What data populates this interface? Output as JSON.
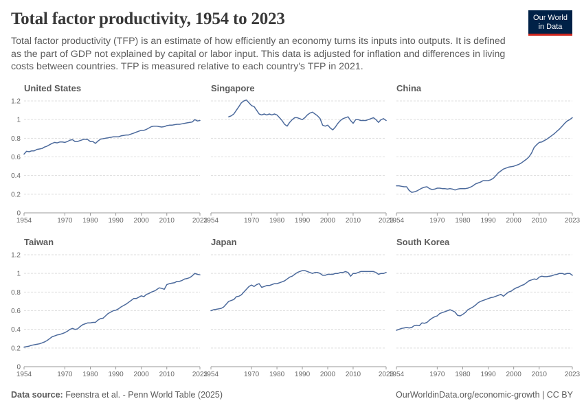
{
  "header": {
    "title": "Total factor productivity, 1954 to 2023",
    "subtitle": "Total factor productivity (TFP) is an estimate of how efficiently an economy turns its inputs into outputs. It is defined as the part of GDP not explained by capital or labor input. This data is adjusted for inflation and differences in living costs between countries. TFP is measured relative to each country's TFP in 2021.",
    "logo_line1": "Our World",
    "logo_line2": "in Data"
  },
  "footer": {
    "source_label": "Data source:",
    "source_text": "Feenstra et al. - Penn World Table (2025)",
    "right_text": "OurWorldinData.org/economic-growth | CC BY"
  },
  "colors": {
    "line": "#4c6a9c",
    "grid": "#dddddd",
    "axis": "#999999",
    "logo_bg": "#002147",
    "logo_accent": "#ce261e"
  },
  "chart_data": [
    {
      "type": "line",
      "title": "United States",
      "xticks": [
        1954,
        1970,
        1980,
        1990,
        2000,
        2010,
        2023
      ],
      "yticks": [
        0,
        0.2,
        0.4,
        0.6,
        0.8,
        1,
        1.2
      ],
      "ytick_labels": [
        "0",
        "0.2",
        "0.4",
        "0.6",
        "0.8",
        "1",
        "1.2"
      ],
      "xlim": [
        1954,
        2023
      ],
      "ylim": [
        0,
        1.25
      ],
      "grid": true,
      "x": [
        1954,
        1955,
        1956,
        1957,
        1958,
        1959,
        1960,
        1961,
        1962,
        1963,
        1964,
        1965,
        1966,
        1967,
        1968,
        1969,
        1970,
        1971,
        1972,
        1973,
        1974,
        1975,
        1976,
        1977,
        1978,
        1979,
        1980,
        1981,
        1982,
        1983,
        1984,
        1985,
        1986,
        1987,
        1988,
        1989,
        1990,
        1991,
        1992,
        1993,
        1994,
        1995,
        1996,
        1997,
        1998,
        1999,
        2000,
        2001,
        2002,
        2003,
        2004,
        2005,
        2006,
        2007,
        2008,
        2009,
        2010,
        2011,
        2012,
        2013,
        2014,
        2015,
        2016,
        2017,
        2018,
        2019,
        2020,
        2021,
        2022,
        2023
      ],
      "y": [
        0.63,
        0.66,
        0.655,
        0.665,
        0.665,
        0.68,
        0.685,
        0.69,
        0.705,
        0.715,
        0.73,
        0.745,
        0.755,
        0.75,
        0.76,
        0.76,
        0.755,
        0.765,
        0.78,
        0.785,
        0.765,
        0.765,
        0.775,
        0.785,
        0.79,
        0.785,
        0.765,
        0.765,
        0.745,
        0.77,
        0.79,
        0.795,
        0.8,
        0.805,
        0.81,
        0.815,
        0.815,
        0.815,
        0.825,
        0.83,
        0.835,
        0.835,
        0.845,
        0.855,
        0.865,
        0.875,
        0.885,
        0.885,
        0.895,
        0.91,
        0.925,
        0.93,
        0.93,
        0.925,
        0.92,
        0.925,
        0.935,
        0.94,
        0.94,
        0.945,
        0.95,
        0.95,
        0.955,
        0.96,
        0.965,
        0.97,
        0.975,
        1.0,
        0.985,
        0.99
      ]
    },
    {
      "type": "line",
      "title": "Singapore",
      "xticks": [
        1954,
        1970,
        1980,
        1990,
        2000,
        2010,
        2023
      ],
      "yticks": [
        0,
        0.2,
        0.4,
        0.6,
        0.8,
        1,
        1.2
      ],
      "ytick_labels": [
        "",
        "",
        "",
        "",
        "",
        "",
        ""
      ],
      "xlim": [
        1954,
        2023
      ],
      "ylim": [
        0,
        1.25
      ],
      "grid": true,
      "x": [
        1961,
        1962,
        1963,
        1964,
        1965,
        1966,
        1967,
        1968,
        1969,
        1970,
        1971,
        1972,
        1973,
        1974,
        1975,
        1976,
        1977,
        1978,
        1979,
        1980,
        1981,
        1982,
        1983,
        1984,
        1985,
        1986,
        1987,
        1988,
        1989,
        1990,
        1991,
        1992,
        1993,
        1994,
        1995,
        1996,
        1997,
        1998,
        1999,
        2000,
        2001,
        2002,
        2003,
        2004,
        2005,
        2006,
        2007,
        2008,
        2009,
        2010,
        2011,
        2012,
        2013,
        2014,
        2015,
        2016,
        2017,
        2018,
        2019,
        2020,
        2021,
        2022,
        2023
      ],
      "y": [
        1.03,
        1.04,
        1.06,
        1.1,
        1.14,
        1.18,
        1.2,
        1.21,
        1.18,
        1.15,
        1.14,
        1.1,
        1.06,
        1.05,
        1.06,
        1.05,
        1.06,
        1.05,
        1.06,
        1.05,
        1.02,
        0.99,
        0.95,
        0.93,
        0.97,
        1.0,
        1.02,
        1.02,
        1.01,
        1.0,
        1.02,
        1.05,
        1.07,
        1.08,
        1.06,
        1.04,
        1.01,
        0.94,
        0.93,
        0.94,
        0.91,
        0.89,
        0.92,
        0.96,
        0.99,
        1.01,
        1.02,
        1.03,
        0.99,
        0.96,
        1.0,
        1.0,
        0.99,
        0.99,
        0.99,
        1.0,
        1.01,
        1.02,
        1.0,
        0.97,
        1.0,
        1.01,
        0.99
      ]
    },
    {
      "type": "line",
      "title": "China",
      "xticks": [
        1954,
        1970,
        1980,
        1990,
        2000,
        2010,
        2023
      ],
      "yticks": [
        0,
        0.2,
        0.4,
        0.6,
        0.8,
        1,
        1.2
      ],
      "ytick_labels": [
        "",
        "",
        "",
        "",
        "",
        "",
        ""
      ],
      "xlim": [
        1954,
        2023
      ],
      "ylim": [
        0,
        1.25
      ],
      "grid": true,
      "x": [
        1954,
        1955,
        1956,
        1957,
        1958,
        1959,
        1960,
        1961,
        1962,
        1963,
        1964,
        1965,
        1966,
        1967,
        1968,
        1969,
        1970,
        1971,
        1972,
        1973,
        1974,
        1975,
        1976,
        1977,
        1978,
        1979,
        1980,
        1981,
        1982,
        1983,
        1984,
        1985,
        1986,
        1987,
        1988,
        1989,
        1990,
        1991,
        1992,
        1993,
        1994,
        1995,
        1996,
        1997,
        1998,
        1999,
        2000,
        2001,
        2002,
        2003,
        2004,
        2005,
        2006,
        2007,
        2008,
        2009,
        2010,
        2011,
        2012,
        2013,
        2014,
        2015,
        2016,
        2017,
        2018,
        2019,
        2020,
        2021,
        2022,
        2023
      ],
      "y": [
        0.29,
        0.29,
        0.285,
        0.28,
        0.28,
        0.24,
        0.22,
        0.225,
        0.235,
        0.25,
        0.265,
        0.275,
        0.28,
        0.26,
        0.25,
        0.255,
        0.265,
        0.265,
        0.26,
        0.26,
        0.255,
        0.26,
        0.255,
        0.245,
        0.255,
        0.26,
        0.26,
        0.26,
        0.265,
        0.275,
        0.29,
        0.31,
        0.32,
        0.33,
        0.345,
        0.345,
        0.345,
        0.355,
        0.37,
        0.4,
        0.43,
        0.45,
        0.47,
        0.48,
        0.49,
        0.495,
        0.5,
        0.51,
        0.52,
        0.535,
        0.555,
        0.575,
        0.6,
        0.64,
        0.7,
        0.73,
        0.755,
        0.76,
        0.775,
        0.79,
        0.81,
        0.83,
        0.85,
        0.875,
        0.9,
        0.93,
        0.96,
        0.985,
        1.0,
        1.02
      ]
    },
    {
      "type": "line",
      "title": "Taiwan",
      "xticks": [
        1954,
        1970,
        1980,
        1990,
        2000,
        2010,
        2023
      ],
      "yticks": [
        0,
        0.2,
        0.4,
        0.6,
        0.8,
        1,
        1.2
      ],
      "ytick_labels": [
        "0",
        "0.2",
        "0.4",
        "0.6",
        "0.8",
        "1",
        "1.2"
      ],
      "xlim": [
        1954,
        2023
      ],
      "ylim": [
        0,
        1.25
      ],
      "grid": true,
      "x": [
        1954,
        1955,
        1956,
        1957,
        1958,
        1959,
        1960,
        1961,
        1962,
        1963,
        1964,
        1965,
        1966,
        1967,
        1968,
        1969,
        1970,
        1971,
        1972,
        1973,
        1974,
        1975,
        1976,
        1977,
        1978,
        1979,
        1980,
        1981,
        1982,
        1983,
        1984,
        1985,
        1986,
        1987,
        1988,
        1989,
        1990,
        1991,
        1992,
        1993,
        1994,
        1995,
        1996,
        1997,
        1998,
        1999,
        2000,
        2001,
        2002,
        2003,
        2004,
        2005,
        2006,
        2007,
        2008,
        2009,
        2010,
        2011,
        2012,
        2013,
        2014,
        2015,
        2016,
        2017,
        2018,
        2019,
        2020,
        2021,
        2022,
        2023
      ],
      "y": [
        0.21,
        0.215,
        0.22,
        0.23,
        0.235,
        0.24,
        0.245,
        0.255,
        0.265,
        0.28,
        0.3,
        0.32,
        0.33,
        0.34,
        0.345,
        0.355,
        0.365,
        0.38,
        0.4,
        0.41,
        0.4,
        0.405,
        0.43,
        0.45,
        0.46,
        0.47,
        0.47,
        0.475,
        0.475,
        0.5,
        0.515,
        0.52,
        0.545,
        0.57,
        0.585,
        0.6,
        0.605,
        0.62,
        0.64,
        0.655,
        0.67,
        0.69,
        0.71,
        0.73,
        0.73,
        0.745,
        0.76,
        0.75,
        0.775,
        0.785,
        0.8,
        0.81,
        0.825,
        0.845,
        0.84,
        0.83,
        0.88,
        0.89,
        0.895,
        0.9,
        0.915,
        0.915,
        0.925,
        0.94,
        0.945,
        0.955,
        0.975,
        1.0,
        0.99,
        0.985
      ]
    },
    {
      "type": "line",
      "title": "Japan",
      "xticks": [
        1954,
        1970,
        1980,
        1990,
        2000,
        2010,
        2023
      ],
      "yticks": [
        0,
        0.2,
        0.4,
        0.6,
        0.8,
        1,
        1.2
      ],
      "ytick_labels": [
        "",
        "",
        "",
        "",
        "",
        "",
        ""
      ],
      "xlim": [
        1954,
        2023
      ],
      "ylim": [
        0,
        1.25
      ],
      "grid": true,
      "x": [
        1954,
        1955,
        1956,
        1957,
        1958,
        1959,
        1960,
        1961,
        1962,
        1963,
        1964,
        1965,
        1966,
        1967,
        1968,
        1969,
        1970,
        1971,
        1972,
        1973,
        1974,
        1975,
        1976,
        1977,
        1978,
        1979,
        1980,
        1981,
        1982,
        1983,
        1984,
        1985,
        1986,
        1987,
        1988,
        1989,
        1990,
        1991,
        1992,
        1993,
        1994,
        1995,
        1996,
        1997,
        1998,
        1999,
        2000,
        2001,
        2002,
        2003,
        2004,
        2005,
        2006,
        2007,
        2008,
        2009,
        2010,
        2011,
        2012,
        2013,
        2014,
        2015,
        2016,
        2017,
        2018,
        2019,
        2020,
        2021,
        2022,
        2023
      ],
      "y": [
        0.6,
        0.61,
        0.615,
        0.62,
        0.625,
        0.64,
        0.67,
        0.7,
        0.71,
        0.72,
        0.75,
        0.755,
        0.77,
        0.8,
        0.83,
        0.86,
        0.875,
        0.86,
        0.88,
        0.89,
        0.85,
        0.86,
        0.87,
        0.87,
        0.88,
        0.89,
        0.89,
        0.9,
        0.91,
        0.92,
        0.94,
        0.96,
        0.97,
        0.99,
        1.01,
        1.02,
        1.03,
        1.03,
        1.02,
        1.01,
        1.0,
        1.01,
        1.01,
        1.0,
        0.98,
        0.98,
        0.99,
        0.99,
        0.99,
        1.0,
        1.0,
        1.01,
        1.01,
        1.02,
        1.01,
        0.97,
        1.0,
        1.0,
        1.01,
        1.02,
        1.02,
        1.02,
        1.02,
        1.02,
        1.02,
        1.01,
        0.99,
        1.0,
        1.0,
        1.01
      ]
    },
    {
      "type": "line",
      "title": "South Korea",
      "xticks": [
        1954,
        1970,
        1980,
        1990,
        2000,
        2010,
        2023
      ],
      "yticks": [
        0,
        0.2,
        0.4,
        0.6,
        0.8,
        1,
        1.2
      ],
      "ytick_labels": [
        "",
        "",
        "",
        "",
        "",
        "",
        ""
      ],
      "xlim": [
        1954,
        2023
      ],
      "ylim": [
        0,
        1.25
      ],
      "grid": true,
      "x": [
        1954,
        1955,
        1956,
        1957,
        1958,
        1959,
        1960,
        1961,
        1962,
        1963,
        1964,
        1965,
        1966,
        1967,
        1968,
        1969,
        1970,
        1971,
        1972,
        1973,
        1974,
        1975,
        1976,
        1977,
        1978,
        1979,
        1980,
        1981,
        1982,
        1983,
        1984,
        1985,
        1986,
        1987,
        1988,
        1989,
        1990,
        1991,
        1992,
        1993,
        1994,
        1995,
        1996,
        1997,
        1998,
        1999,
        2000,
        2001,
        2002,
        2003,
        2004,
        2005,
        2006,
        2007,
        2008,
        2009,
        2010,
        2011,
        2012,
        2013,
        2014,
        2015,
        2016,
        2017,
        2018,
        2019,
        2020,
        2021,
        2022,
        2023
      ],
      "y": [
        0.39,
        0.4,
        0.41,
        0.415,
        0.42,
        0.415,
        0.42,
        0.44,
        0.445,
        0.44,
        0.47,
        0.465,
        0.475,
        0.5,
        0.52,
        0.535,
        0.545,
        0.57,
        0.58,
        0.59,
        0.6,
        0.61,
        0.6,
        0.585,
        0.55,
        0.545,
        0.56,
        0.58,
        0.61,
        0.625,
        0.64,
        0.66,
        0.685,
        0.7,
        0.71,
        0.72,
        0.73,
        0.74,
        0.745,
        0.755,
        0.765,
        0.775,
        0.755,
        0.78,
        0.8,
        0.81,
        0.83,
        0.845,
        0.855,
        0.87,
        0.88,
        0.9,
        0.92,
        0.93,
        0.94,
        0.935,
        0.96,
        0.97,
        0.965,
        0.965,
        0.97,
        0.975,
        0.985,
        0.99,
        1.0,
        1.0,
        0.99,
        1.0,
        1.0,
        0.98
      ]
    }
  ]
}
